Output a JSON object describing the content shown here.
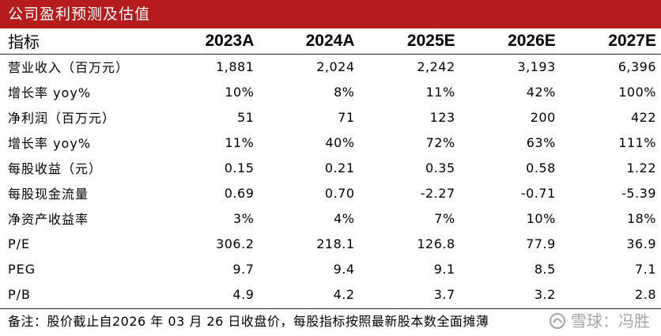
{
  "title": "公司盈利预测及估值",
  "header": {
    "label": "指标",
    "years": [
      "2023A",
      "2024A",
      "2025E",
      "2026E",
      "2027E"
    ]
  },
  "rows": [
    {
      "label": "营业收入（百万元）",
      "values": [
        "1,881",
        "2,024",
        "2,242",
        "3,193",
        "6,396"
      ]
    },
    {
      "label": "增长率 yoy%",
      "values": [
        "10%",
        "8%",
        "11%",
        "42%",
        "100%"
      ]
    },
    {
      "label": "净利润（百万元）",
      "values": [
        "51",
        "71",
        "123",
        "200",
        "422"
      ]
    },
    {
      "label": "增长率 yoy%",
      "values": [
        "11%",
        "40%",
        "72%",
        "63%",
        "111%"
      ]
    },
    {
      "label": "每股收益（元）",
      "values": [
        "0.15",
        "0.21",
        "0.35",
        "0.58",
        "1.22"
      ]
    },
    {
      "label": "每股现金流量",
      "values": [
        "0.69",
        "0.70",
        "-2.27",
        "-0.71",
        "-5.39"
      ]
    },
    {
      "label": "净资产收益率",
      "values": [
        "3%",
        "4%",
        "7%",
        "10%",
        "18%"
      ]
    },
    {
      "label": "P/E",
      "values": [
        "306.2",
        "218.1",
        "126.8",
        "77.9",
        "36.9"
      ]
    },
    {
      "label": "PEG",
      "values": [
        "9.7",
        "9.4",
        "9.1",
        "8.5",
        "7.1"
      ]
    },
    {
      "label": "P/B",
      "values": [
        "4.9",
        "4.2",
        "3.7",
        "3.2",
        "2.8"
      ]
    }
  ],
  "note": "备注：股价截止自2026 年 03 月 26 日收盘价，每股指标按照最新股本数全面摊薄",
  "watermark": "雪球：冯胜",
  "colors": {
    "banner": "#b71c1c"
  }
}
